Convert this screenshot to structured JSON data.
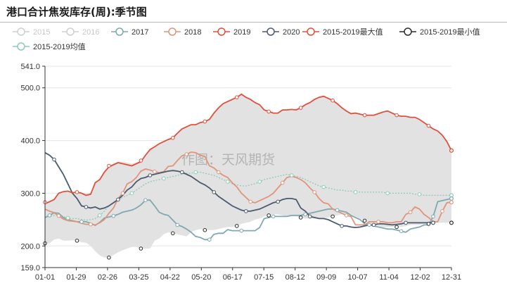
{
  "chart_data": {
    "type": "line",
    "title": "港口合计焦炭库存(周):季节图",
    "watermark": "作图：天风期货",
    "x_ticks": [
      "01-01",
      "01-29",
      "02-26",
      "03-25",
      "04-22",
      "05-20",
      "06-17",
      "07-15",
      "08-12",
      "09-09",
      "10-07",
      "11-04",
      "12-02",
      "12-31"
    ],
    "y_ticks": [
      "541.0",
      "500.0",
      "400.0",
      "300.0",
      "200.0",
      "159.0"
    ],
    "ylim": [
      159,
      541
    ],
    "range_band": {
      "name": "2015-2019最大值 / 2015-2019最小值",
      "color": "#e2e2e2"
    },
    "series": [
      {
        "name": "2015",
        "color": "#cfcfcf",
        "marker": "hollow-circle",
        "visible": false,
        "values": []
      },
      {
        "name": "2016",
        "color": "#cfcfcf",
        "marker": "hollow-circle",
        "visible": false,
        "values": []
      },
      {
        "name": "2017",
        "color": "#7ea9b0",
        "marker": "hollow-circle",
        "visible": true,
        "values": [
          254,
          258,
          263,
          262,
          254,
          250,
          248,
          246,
          246,
          246,
          243,
          239,
          245,
          253,
          255,
          257,
          260,
          264,
          266,
          268,
          272,
          278,
          287,
          287,
          276,
          264,
          260,
          258,
          249,
          240,
          237,
          232,
          226,
          218,
          216,
          212,
          212,
          222,
          224,
          224,
          231,
          229,
          229,
          229,
          229,
          229,
          229,
          235,
          252,
          254,
          256,
          256,
          256,
          256,
          258,
          258,
          258,
          260,
          262,
          264,
          266,
          268,
          270,
          270,
          268,
          266,
          264,
          258,
          254,
          250,
          242,
          240,
          238,
          236,
          234,
          232,
          232,
          230,
          228,
          226,
          232,
          234,
          236,
          240,
          240,
          256,
          284,
          286,
          288,
          290
        ]
      },
      {
        "name": "2018",
        "color": "#e0957a",
        "marker": "hollow-circle",
        "visible": true,
        "values": [
          270,
          266,
          263,
          257,
          251,
          248,
          247,
          246,
          243,
          241,
          241,
          240,
          244,
          250,
          262,
          272,
          290,
          300,
          318,
          322,
          330,
          342,
          346,
          344,
          341,
          339,
          341,
          351,
          352,
          362,
          371,
          374,
          378,
          377,
          372,
          370,
          352,
          348,
          340,
          334,
          330,
          320,
          312,
          300,
          292,
          284,
          282,
          286,
          290,
          294,
          300,
          310,
          320,
          330,
          332,
          330,
          326,
          320,
          310,
          302,
          290,
          282,
          280,
          270,
          266,
          262,
          258,
          256,
          240,
          240,
          240,
          246,
          246,
          246,
          246,
          244,
          244,
          246,
          246,
          260,
          264,
          274,
          270,
          260,
          254,
          246,
          246,
          266,
          282,
          283
        ]
      },
      {
        "name": "2019",
        "color": "#e0503c",
        "marker": "hollow-circle",
        "visible": true,
        "values": [
          280,
          284,
          288,
          300,
          303,
          304,
          301,
          302,
          300,
          296,
          298,
          320,
          326,
          340,
          350,
          354,
          358,
          356,
          354,
          352,
          356,
          360,
          372,
          383,
          388,
          394,
          398,
          402,
          405,
          414,
          422,
          426,
          430,
          430,
          434,
          436,
          440,
          452,
          462,
          470,
          474,
          478,
          482,
          488,
          482,
          478,
          472,
          468,
          458,
          455,
          452,
          452,
          458,
          458,
          459,
          458,
          462,
          468,
          472,
          478,
          482,
          484,
          480,
          476,
          470,
          462,
          456,
          451,
          452,
          450,
          448,
          448,
          448,
          451,
          454,
          456,
          452,
          448,
          446,
          446,
          444,
          444,
          440,
          434,
          428,
          422,
          418,
          410,
          398,
          381
        ]
      },
      {
        "name": "2020",
        "color": "#4b5a6e",
        "marker": "hollow-circle",
        "visible": true,
        "values": [
          377,
          372,
          364,
          350,
          336,
          318,
          300,
          290,
          276,
          274,
          272,
          274,
          270,
          272,
          276,
          282,
          288,
          296,
          306,
          312,
          322,
          328,
          330,
          334,
          336,
          338,
          340,
          342,
          343,
          342,
          340,
          336,
          332,
          326,
          320,
          316,
          310,
          302,
          294,
          288,
          282,
          276,
          272,
          268,
          266,
          266,
          268,
          270,
          274,
          278,
          282,
          284,
          288,
          290,
          290,
          288,
          272,
          266,
          256,
          254,
          252,
          252,
          250,
          246,
          242,
          238,
          238,
          236,
          235,
          236,
          238,
          240,
          240,
          242,
          242,
          241,
          240,
          241,
          242,
          244,
          244,
          244,
          244,
          244,
          244,
          244
        ]
      },
      {
        "name": "2015-2019最大值",
        "color": "#e0503c",
        "marker": "hollow-circle",
        "visible": true,
        "values": [
          283,
          285,
          290,
          300,
          304,
          304,
          302,
          302,
          300,
          300,
          301,
          320,
          328,
          342,
          352,
          356,
          360,
          360,
          358,
          356,
          358,
          362,
          372,
          383,
          388,
          394,
          398,
          402,
          405,
          414,
          422,
          426,
          430,
          430,
          434,
          436,
          440,
          452,
          462,
          470,
          474,
          478,
          482,
          488,
          482,
          478,
          472,
          468,
          458,
          455,
          452,
          452,
          458,
          458,
          459,
          458,
          462,
          468,
          472,
          478,
          482,
          484,
          480,
          476,
          470,
          462,
          456,
          451,
          452,
          450,
          448,
          448,
          448,
          451,
          454,
          456,
          452,
          448,
          446,
          446,
          444,
          444,
          440,
          434,
          428,
          422,
          418,
          410,
          398,
          381
        ]
      },
      {
        "name": "2015-2019最小值",
        "color": "#2a2a2a",
        "marker": "hollow-circle",
        "visible": true,
        "values": [
          205,
          205,
          212,
          214,
          210,
          210,
          211,
          210,
          207,
          206,
          200,
          190,
          182,
          178,
          178,
          183,
          188,
          192,
          195,
          198,
          198,
          195,
          195,
          195,
          210,
          214,
          222,
          226,
          224,
          222,
          220,
          218,
          226,
          230,
          232,
          230,
          230,
          230,
          232,
          234,
          236,
          236,
          238,
          242,
          244,
          246,
          250,
          252,
          256,
          258,
          260,
          260,
          258,
          256,
          256,
          256,
          254,
          252,
          252,
          252,
          252,
          252,
          254,
          256,
          258,
          260,
          260,
          258,
          256,
          252,
          248,
          244,
          240,
          238,
          236,
          236,
          236,
          236,
          236,
          238,
          240,
          240,
          240,
          242,
          242,
          244,
          244,
          244,
          244,
          244
        ]
      },
      {
        "name": "2015-2019均值",
        "color": "#8ccdb4",
        "marker": "hollow-circle",
        "visible": true,
        "values": [
          254,
          256,
          258,
          258,
          256,
          253,
          252,
          252,
          250,
          249,
          250,
          252,
          258,
          266,
          276,
          282,
          286,
          292,
          296,
          300,
          306,
          312,
          318,
          322,
          324,
          326,
          328,
          330,
          332,
          334,
          336,
          338,
          338,
          340,
          340,
          338,
          336,
          334,
          330,
          326,
          322,
          318,
          316,
          314,
          314,
          316,
          318,
          322,
          326,
          328,
          330,
          332,
          334,
          336,
          334,
          332,
          330,
          326,
          322,
          318,
          314,
          312,
          310,
          308,
          306,
          306,
          304,
          304,
          302,
          302,
          302,
          302,
          302,
          302,
          302,
          300,
          300,
          300,
          300,
          300,
          300,
          298,
          298,
          296,
          296,
          296,
          296,
          296,
          296,
          296
        ]
      }
    ]
  }
}
